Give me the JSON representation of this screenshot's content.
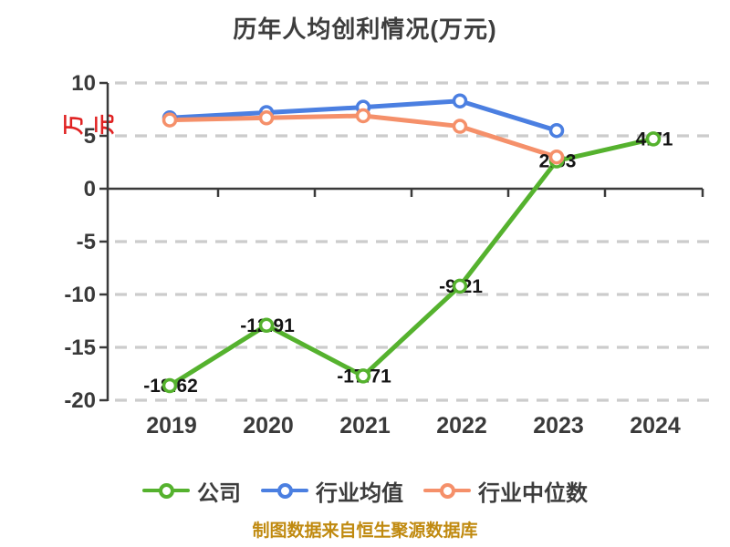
{
  "title": "历年人均创利情况(万元)",
  "source_note": "制图数据来自恒生聚源数据库",
  "colors": {
    "company_green": "#55b22e",
    "industry_avg_blue": "#4b7fe1",
    "industry_median_orange": "#f5906a",
    "grid": "#cccccc",
    "axis": "#3a3a3a",
    "tick_label": "#3a3a3a",
    "point_label": "#151515",
    "title_text": "#3d3d3d",
    "y_unit_red": "#e02222",
    "source_text": "#c08a10"
  },
  "chart_data": {
    "type": "line",
    "title": "历年人均创利情况(万元)",
    "xlabel": "",
    "ylabel": "万元",
    "categories": [
      "2019",
      "2020",
      "2021",
      "2022",
      "2023",
      "2024"
    ],
    "yticks": [
      10,
      5,
      0,
      -5,
      -10,
      -15,
      -20
    ],
    "ylim": [
      -20,
      10
    ],
    "grid": "horizontal-dashed",
    "legend_position": "bottom",
    "series": [
      {
        "name": "公司",
        "color": "#55b22e",
        "values": [
          -18.62,
          -12.91,
          -17.71,
          -9.21,
          2.63,
          4.71
        ],
        "labels": [
          "-18.62",
          "-12.91",
          "-17.71",
          "-9.21",
          "2.63",
          "4.71"
        ]
      },
      {
        "name": "行业均值",
        "color": "#4b7fe1",
        "values": [
          6.7,
          7.2,
          7.7,
          8.3,
          5.5,
          null
        ],
        "labels": null
      },
      {
        "name": "行业中位数",
        "color": "#f5906a",
        "values": [
          6.5,
          6.7,
          6.9,
          5.9,
          3.0,
          null
        ],
        "labels": null
      }
    ]
  }
}
